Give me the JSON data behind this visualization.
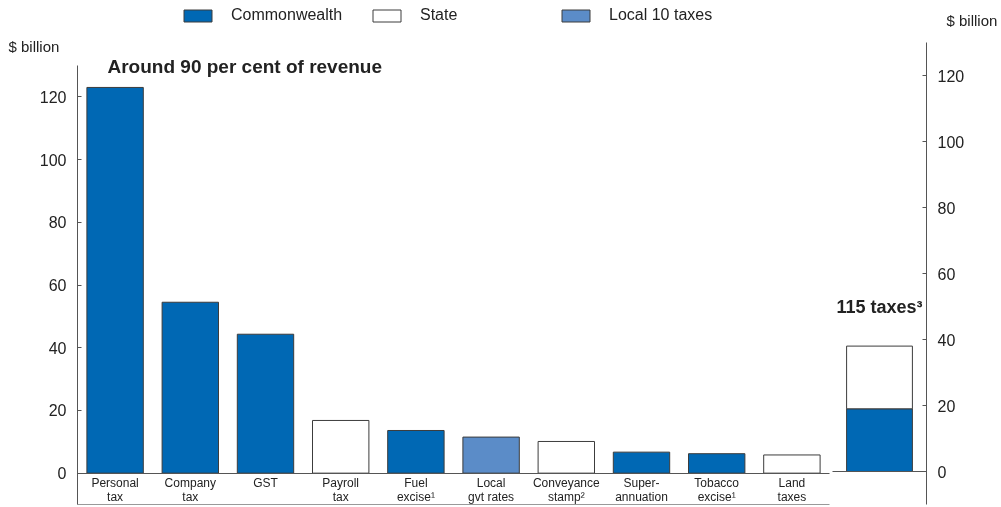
{
  "chart_data": [
    {
      "type": "bar",
      "title": "Around 90 per cent of revenue",
      "ylabel": "$ billion",
      "categories": [
        "Personal\ntax",
        "Company\ntax",
        "GST",
        "Payroll\ntax",
        "Fuel\nexcise¹",
        "Local\ngvt rates",
        "Conveyance\nstamp²",
        "Super-\nannuation",
        "Tobacco\nexcise¹",
        "Land\ntaxes"
      ],
      "series": [
        {
          "name": "Commonwealth",
          "color": "#0068b4",
          "values": [
            123,
            54.5,
            44.3,
            null,
            13.6,
            null,
            null,
            6.7,
            6.2,
            null
          ]
        },
        {
          "name": "State",
          "color": "#ffffff",
          "values": [
            null,
            null,
            null,
            16.8,
            null,
            null,
            10.1,
            null,
            null,
            5.8
          ]
        },
        {
          "name": "Local 10 taxes",
          "color": "#5b8cc8",
          "values": [
            null,
            null,
            null,
            null,
            null,
            11.5,
            null,
            null,
            null,
            null
          ]
        }
      ],
      "stacked": true,
      "ylim": [
        -10,
        130
      ],
      "yticks": [
        0,
        20,
        40,
        60,
        80,
        100,
        120
      ],
      "legend": "top"
    },
    {
      "type": "bar",
      "title": "115 taxes³",
      "ylabel": "$ billion",
      "categories": [
        null
      ],
      "series": [
        {
          "color": "#0068b4",
          "values": [
            19
          ]
        },
        {
          "color": "#ffffff",
          "values": [
            19
          ]
        }
      ],
      "stacked": true,
      "ylim": [
        -10,
        130
      ],
      "yticks": [
        0,
        20,
        40,
        60,
        80,
        100,
        120
      ]
    }
  ]
}
